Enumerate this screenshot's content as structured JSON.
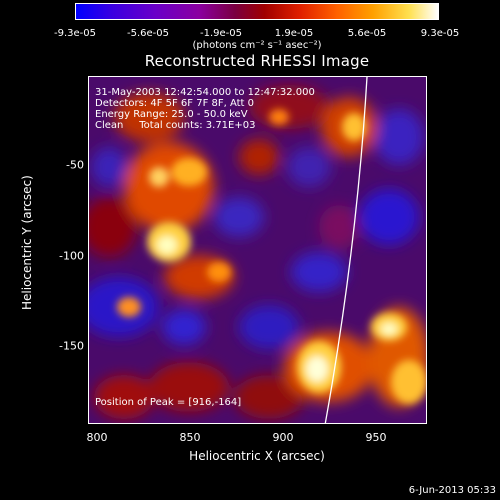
{
  "colorbar": {
    "ticks": [
      "-9.3e-05",
      "-5.6e-05",
      "-1.9e-05",
      "1.9e-05",
      "5.6e-05",
      "9.3e-05"
    ],
    "units": "(photons cm⁻² s⁻¹ asec⁻²)"
  },
  "title": "Reconstructed RHESSI Image",
  "info": {
    "time": "31-May-2003 12:42:54.000 to 12:47:32.000",
    "detectors": "Detectors: 4F 5F 6F 7F 8F, Att 0",
    "energy": "Energy Range: 25.0 - 50.0 keV",
    "clean": "Clean     Total counts: 3.71E+03",
    "peak": "Position of Peak = [916,-164]"
  },
  "axes": {
    "xlabel": "Heliocentric X (arcsec)",
    "ylabel": "Heliocentric Y (arcsec)",
    "xticks": [
      "800",
      "850",
      "900",
      "950"
    ],
    "yticks": [
      "-50",
      "-100",
      "-150"
    ]
  },
  "footer": "6-Jun-2013 05:33"
}
